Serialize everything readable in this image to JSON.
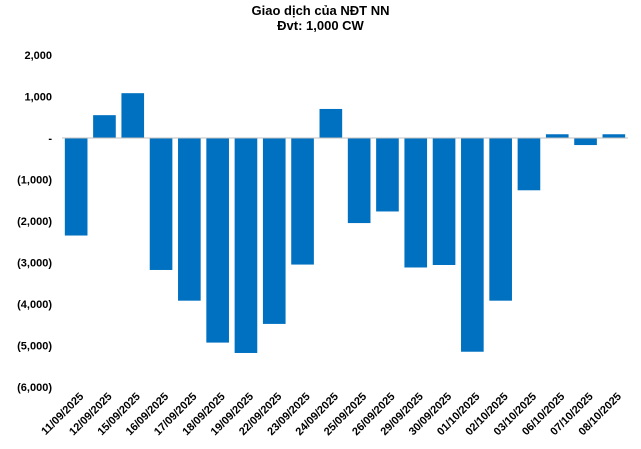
{
  "chart_data": {
    "type": "bar",
    "title": "Giao dịch của NĐT NN",
    "subtitle": "Đvt: 1,000 CW",
    "xlabel": "",
    "ylabel": "",
    "ylim": [
      -6000,
      2000
    ],
    "yticks": [
      2000,
      1000,
      0,
      -1000,
      -2000,
      -3000,
      -4000,
      -5000,
      -6000
    ],
    "ytick_labels": [
      "2,000",
      "1,000",
      "-",
      "(1,000)",
      "(2,000)",
      "(3,000)",
      "(4,000)",
      "(5,000)",
      "(6,000)"
    ],
    "categories": [
      "11/09/2025",
      "12/09/2025",
      "15/09/2025",
      "16/09/2025",
      "17/09/2025",
      "18/09/2025",
      "19/09/2025",
      "22/09/2025",
      "23/09/2025",
      "24/09/2025",
      "25/09/2025",
      "26/09/2025",
      "29/09/2025",
      "30/09/2025",
      "01/10/2025",
      "02/10/2025",
      "03/10/2025",
      "06/10/2025",
      "07/10/2025",
      "08/10/2025"
    ],
    "values": [
      -2350,
      550,
      1080,
      -3180,
      -3920,
      -4930,
      -5180,
      -4480,
      -3050,
      700,
      -2050,
      -1770,
      -3120,
      -3060,
      -5150,
      -3920,
      -1260,
      90,
      -170,
      90
    ],
    "grid": false,
    "colors": {
      "bar": "#0070C0",
      "axis": "#BFBFBF"
    }
  }
}
